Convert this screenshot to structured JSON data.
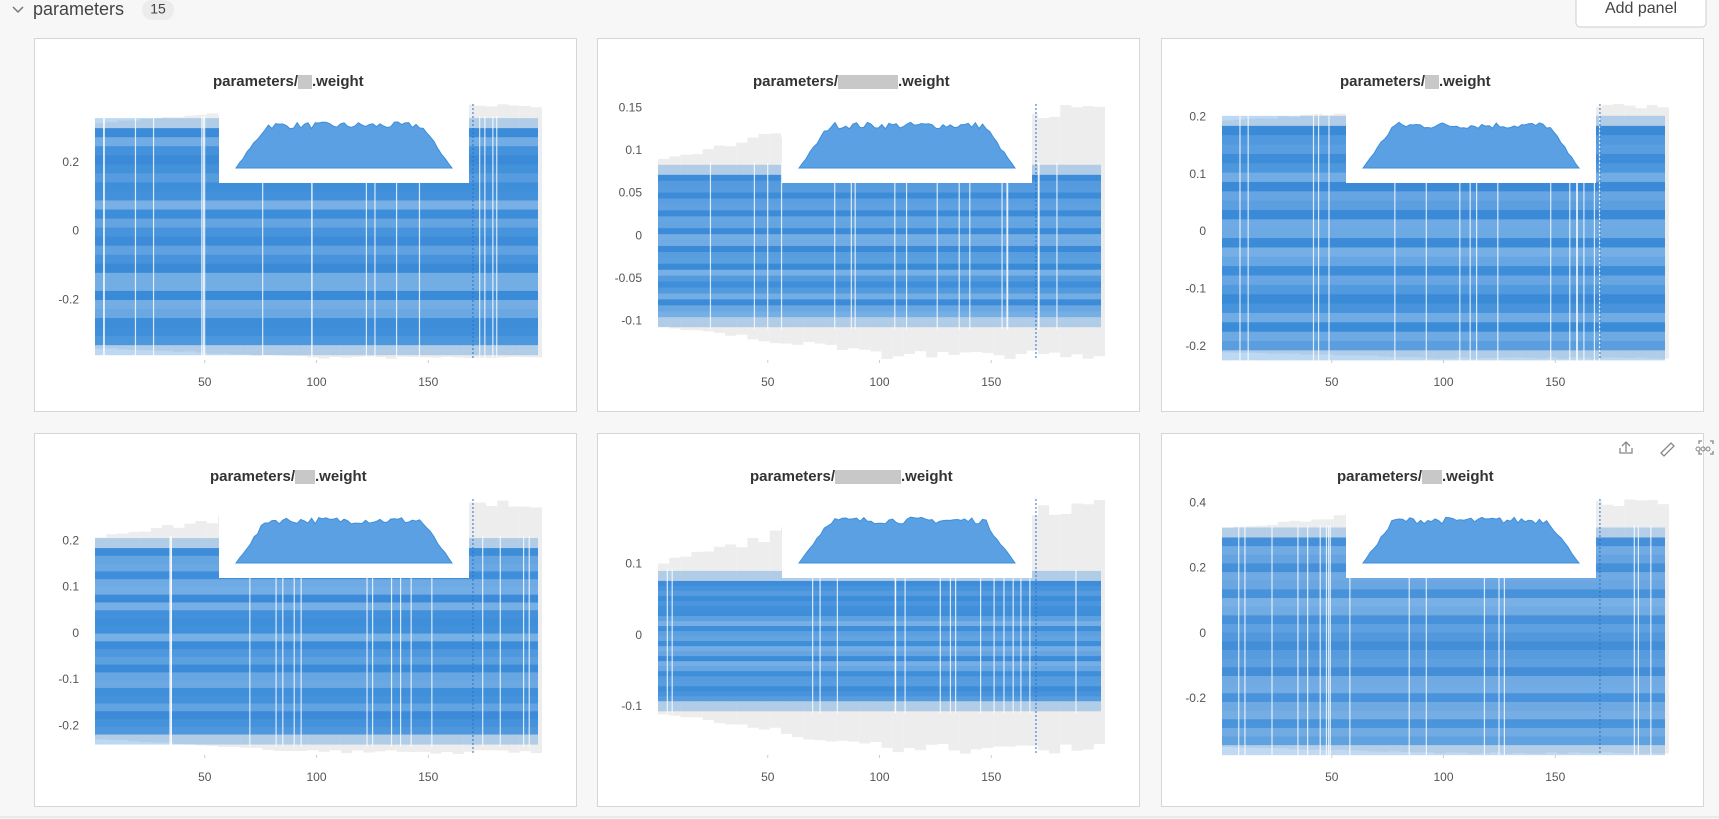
{
  "header": {
    "section": "parameters",
    "count": "15",
    "button": "Add panel"
  },
  "panels": [
    {
      "title_prefix": "parameters/",
      "title_suffix": ".weight",
      "color": "#3f8fdb",
      "xlim": [
        0,
        200
      ],
      "xticks": [
        50,
        100,
        150
      ],
      "ylim": [
        -0.37,
        0.37
      ],
      "yticks": [
        0.2,
        0,
        -0.2
      ],
      "band": [
        -0.33,
        0.3
      ],
      "step": 170
    },
    {
      "title_prefix": "parameters/",
      "title_suffix": ".weight",
      "color": "#3f8fdb",
      "xlim": [
        0,
        200
      ],
      "xticks": [
        50,
        100,
        150
      ],
      "ylim": [
        -0.144,
        0.155
      ],
      "yticks": [
        0.15,
        0.1,
        0.05,
        0,
        -0.05,
        -0.1
      ],
      "band": [
        -0.095,
        0.072
      ],
      "step": 170
    },
    {
      "title_prefix": "parameters/",
      "title_suffix": ".weight",
      "color": "#3f8fdb",
      "xlim": [
        0,
        200
      ],
      "xticks": [
        50,
        100,
        150
      ],
      "ylim": [
        -0.221,
        0.223
      ],
      "yticks": [
        0.2,
        0.1,
        0,
        -0.1,
        -0.2
      ],
      "band": [
        -0.206,
        0.185
      ],
      "step": 170
    },
    {
      "title_prefix": "parameters/",
      "title_suffix": ".weight",
      "color": "#3f8fdb",
      "xlim": [
        0,
        200
      ],
      "xticks": [
        50,
        100,
        150
      ],
      "ylim": [
        -0.26,
        0.291
      ],
      "yticks": [
        0.2,
        0.1,
        0,
        -0.1,
        -0.2
      ],
      "band": [
        -0.218,
        0.185
      ],
      "step": 170
    },
    {
      "title_prefix": "parameters/",
      "title_suffix": ".weight",
      "color": "#3f8fdb",
      "xlim": [
        0,
        200
      ],
      "xticks": [
        50,
        100,
        150
      ],
      "ylim": [
        -0.166,
        0.192
      ],
      "yticks": [
        0.1,
        0,
        -0.1
      ],
      "band": [
        -0.092,
        0.077
      ],
      "step": 170
    },
    {
      "title_prefix": "parameters/",
      "title_suffix": ".weight",
      "color": "#4a94dc",
      "xlim": [
        0,
        200
      ],
      "xticks": [
        50,
        100,
        150
      ],
      "ylim": [
        -0.369,
        0.413
      ],
      "yticks": [
        0.4,
        0.2,
        0,
        -0.2
      ],
      "band": [
        -0.342,
        0.295
      ],
      "step": 170
    }
  ]
}
